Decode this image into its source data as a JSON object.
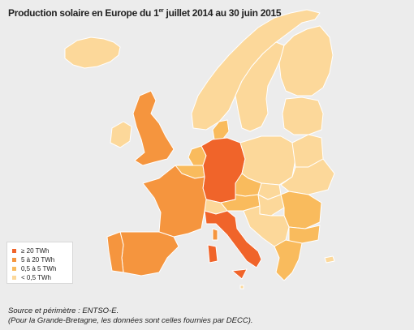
{
  "title": {
    "before_sup": "Production solaire en Europe du 1",
    "sup": "er",
    "after_sup": " juillet 2014 au 30 juin 2015"
  },
  "colors": {
    "background": "#ececec",
    "border": "#ffffff",
    "tier1": "#f0642a",
    "tier2": "#f5953e",
    "tier3": "#f9bb5d",
    "tier4": "#fcd89a"
  },
  "legend": {
    "items": [
      {
        "label": "≥ 20 TWh",
        "color": "#f0642a"
      },
      {
        "label": "5 à 20 TWh",
        "color": "#f5953e"
      },
      {
        "label": "0,5 à 5 TWh",
        "color": "#f9bb5d"
      },
      {
        "label": "< 0,5 TWh",
        "color": "#fcd89a"
      }
    ]
  },
  "source": {
    "line1": "Source et périmètre : ENTSO-E.",
    "line2": "(Pour la Grande-Bretagne, les données sont celles fournies par DECC)."
  }
}
